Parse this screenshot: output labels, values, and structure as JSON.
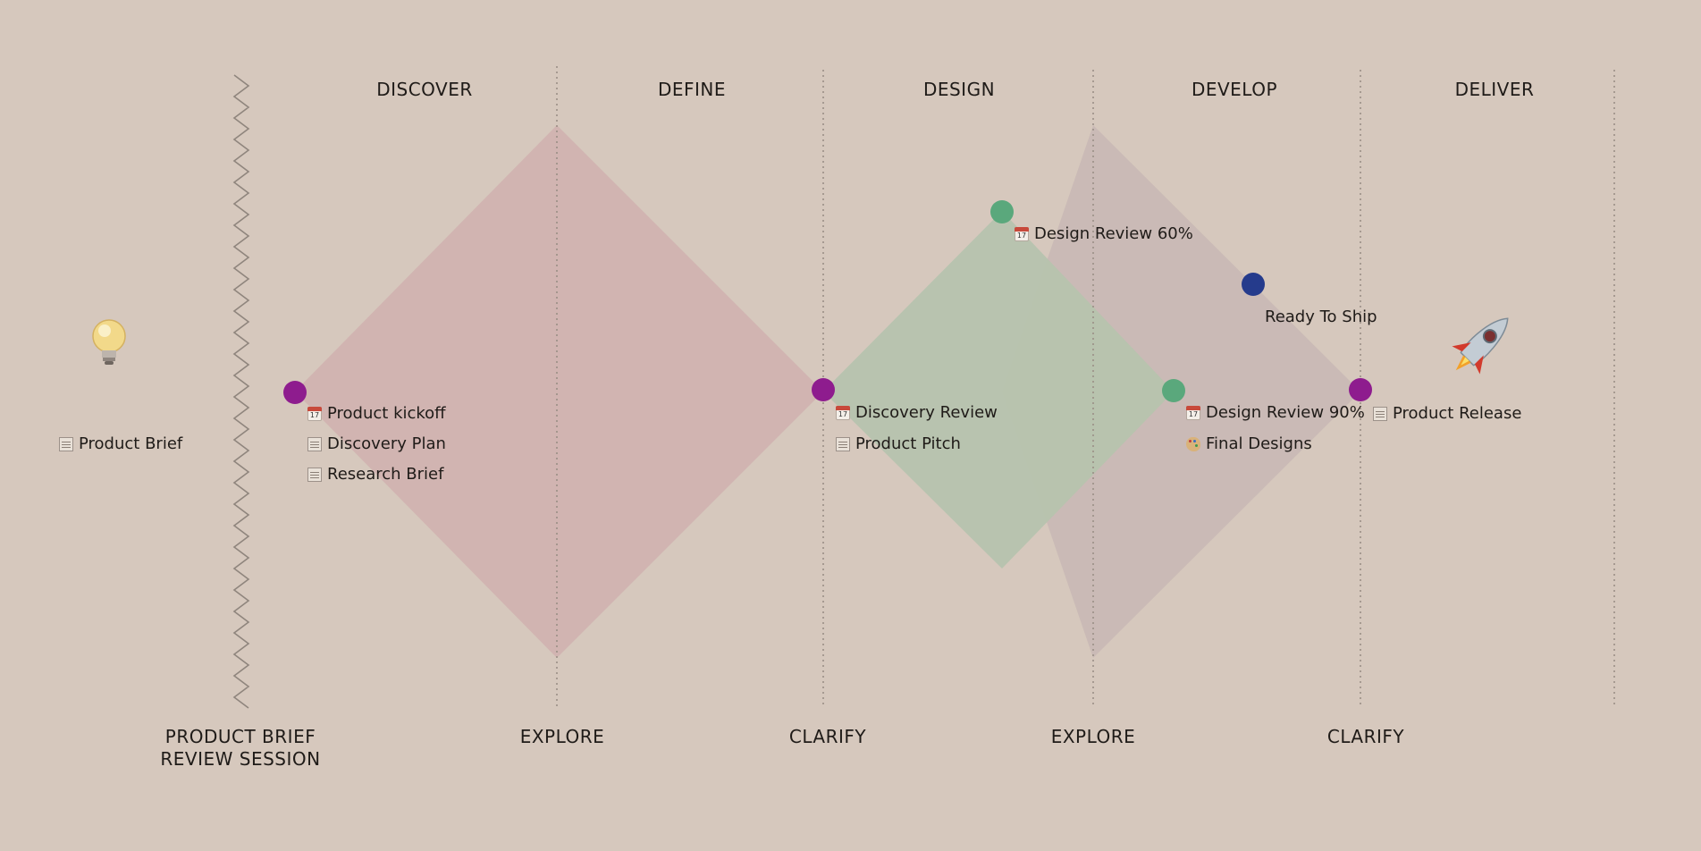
{
  "phases": {
    "discover": "DISCOVER",
    "define": "DEFINE",
    "design": "DESIGN",
    "develop": "DEVELOP",
    "deliver": "DELIVER"
  },
  "stages": {
    "brief_review_line1": "PRODUCT BRIEF",
    "brief_review_line2": "REVIEW SESSION",
    "explore_1": "EXPLORE",
    "clarify_1": "CLARIFY",
    "explore_2": "EXPLORE",
    "clarify_2": "CLARIFY"
  },
  "labels": {
    "product_brief": "Product Brief",
    "product_kickoff": "Product kickoff",
    "discovery_plan": "Discovery Plan",
    "research_brief": "Research Brief",
    "discovery_review": "Discovery Review",
    "product_pitch": "Product Pitch",
    "design_review_60": "Design Review 60%",
    "ready_to_ship": "Ready To Ship",
    "design_review_90": "Design Review 90%",
    "final_designs": "Final Designs",
    "product_release": "Product Release"
  },
  "icons": {
    "start": "lightbulb-icon",
    "end": "rocket-icon",
    "event": "calendar-icon",
    "document": "document-icon",
    "design": "palette-icon"
  },
  "colors": {
    "background": "#d6c8bd",
    "diamond_one": "#d2b2b0",
    "diamond_two": "#c8b8b4",
    "overlap_green": "#b5c2ad",
    "milestone_purple": "#8e1c8e",
    "milestone_green": "#5aa87c",
    "milestone_blue": "#253b8c"
  }
}
